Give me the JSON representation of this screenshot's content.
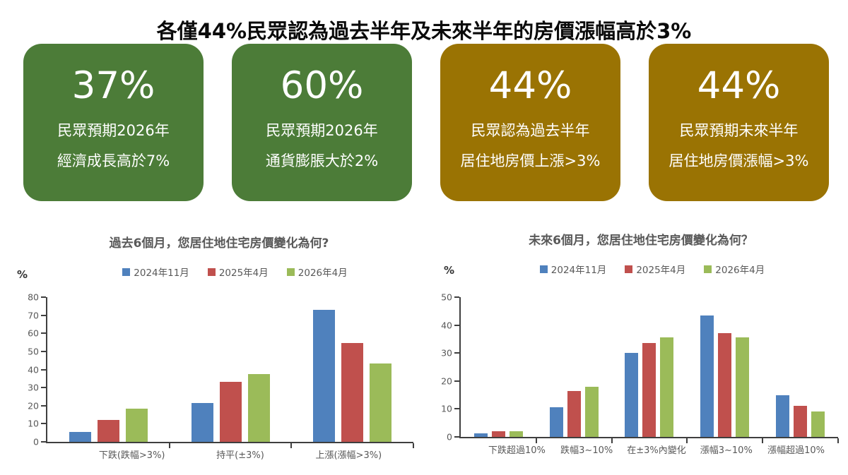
{
  "page_title": "各僅44%民眾認為過去半年及未來半年的房價漲幅高於3%",
  "colors": {
    "card_green": "#4C7C38",
    "card_gold": "#9A7303",
    "series_blue": "#4F81BD",
    "series_red": "#C0504D",
    "series_green": "#9BBB59",
    "axis": "#3F3F3F",
    "label_gray": "#595959"
  },
  "cards": [
    {
      "value": "37%",
      "line1": "民眾預期2026年",
      "line2": "經濟成長高於7%",
      "color": "#4C7C38"
    },
    {
      "value": "60%",
      "line1": "民眾預期2026年",
      "line2": "通貨膨脹大於2%",
      "color": "#4C7C38"
    },
    {
      "value": "44%",
      "line1": "民眾認為過去半年",
      "line2": "居住地房價上漲>3%",
      "color": "#9A7303"
    },
    {
      "value": "44%",
      "line1": "民眾預期未來半年",
      "line2": "居住地房價漲幅>3%",
      "color": "#9A7303"
    }
  ],
  "chart_data": [
    {
      "type": "bar",
      "title": "過去6個月，您居住地住宅房價變化為何?",
      "ylabel": "%",
      "xlabel": "",
      "ylim": [
        0,
        80
      ],
      "yticks": [
        0,
        10,
        20,
        30,
        40,
        50,
        60,
        70,
        80
      ],
      "grid": false,
      "legend_position": "top",
      "categories": [
        "下跌(跌幅>3%)",
        "持平(±3%)",
        "上漲(漲幅>3%)"
      ],
      "series": [
        {
          "name": "2024年11月",
          "color": "#4F81BD",
          "values": [
            5.5,
            21.5,
            73
          ]
        },
        {
          "name": "2025年4月",
          "color": "#C0504D",
          "values": [
            12,
            33,
            54.5
          ]
        },
        {
          "name": "2026年4月",
          "color": "#9BBB59",
          "values": [
            18.5,
            37.5,
            43.5
          ]
        }
      ]
    },
    {
      "type": "bar",
      "title": "未來6個月，您居住地住宅房價變化為何？",
      "ylabel": "%",
      "xlabel": "",
      "ylim": [
        0,
        50
      ],
      "yticks": [
        0,
        10,
        20,
        30,
        40,
        50
      ],
      "grid": false,
      "legend_position": "top",
      "categories": [
        "下跌超過10%",
        "跌幅3~10%",
        "在±3%內變化",
        "漲幅3~10%",
        "漲幅超過10%"
      ],
      "series": [
        {
          "name": "2024年11月",
          "color": "#4F81BD",
          "values": [
            1.3,
            10.5,
            30,
            43.5,
            15
          ]
        },
        {
          "name": "2025年4月",
          "color": "#C0504D",
          "values": [
            2.1,
            16.5,
            33.5,
            37,
            11
          ]
        },
        {
          "name": "2026年4月",
          "color": "#9BBB59",
          "values": [
            2.1,
            18,
            35.5,
            35.5,
            9
          ]
        }
      ]
    }
  ]
}
